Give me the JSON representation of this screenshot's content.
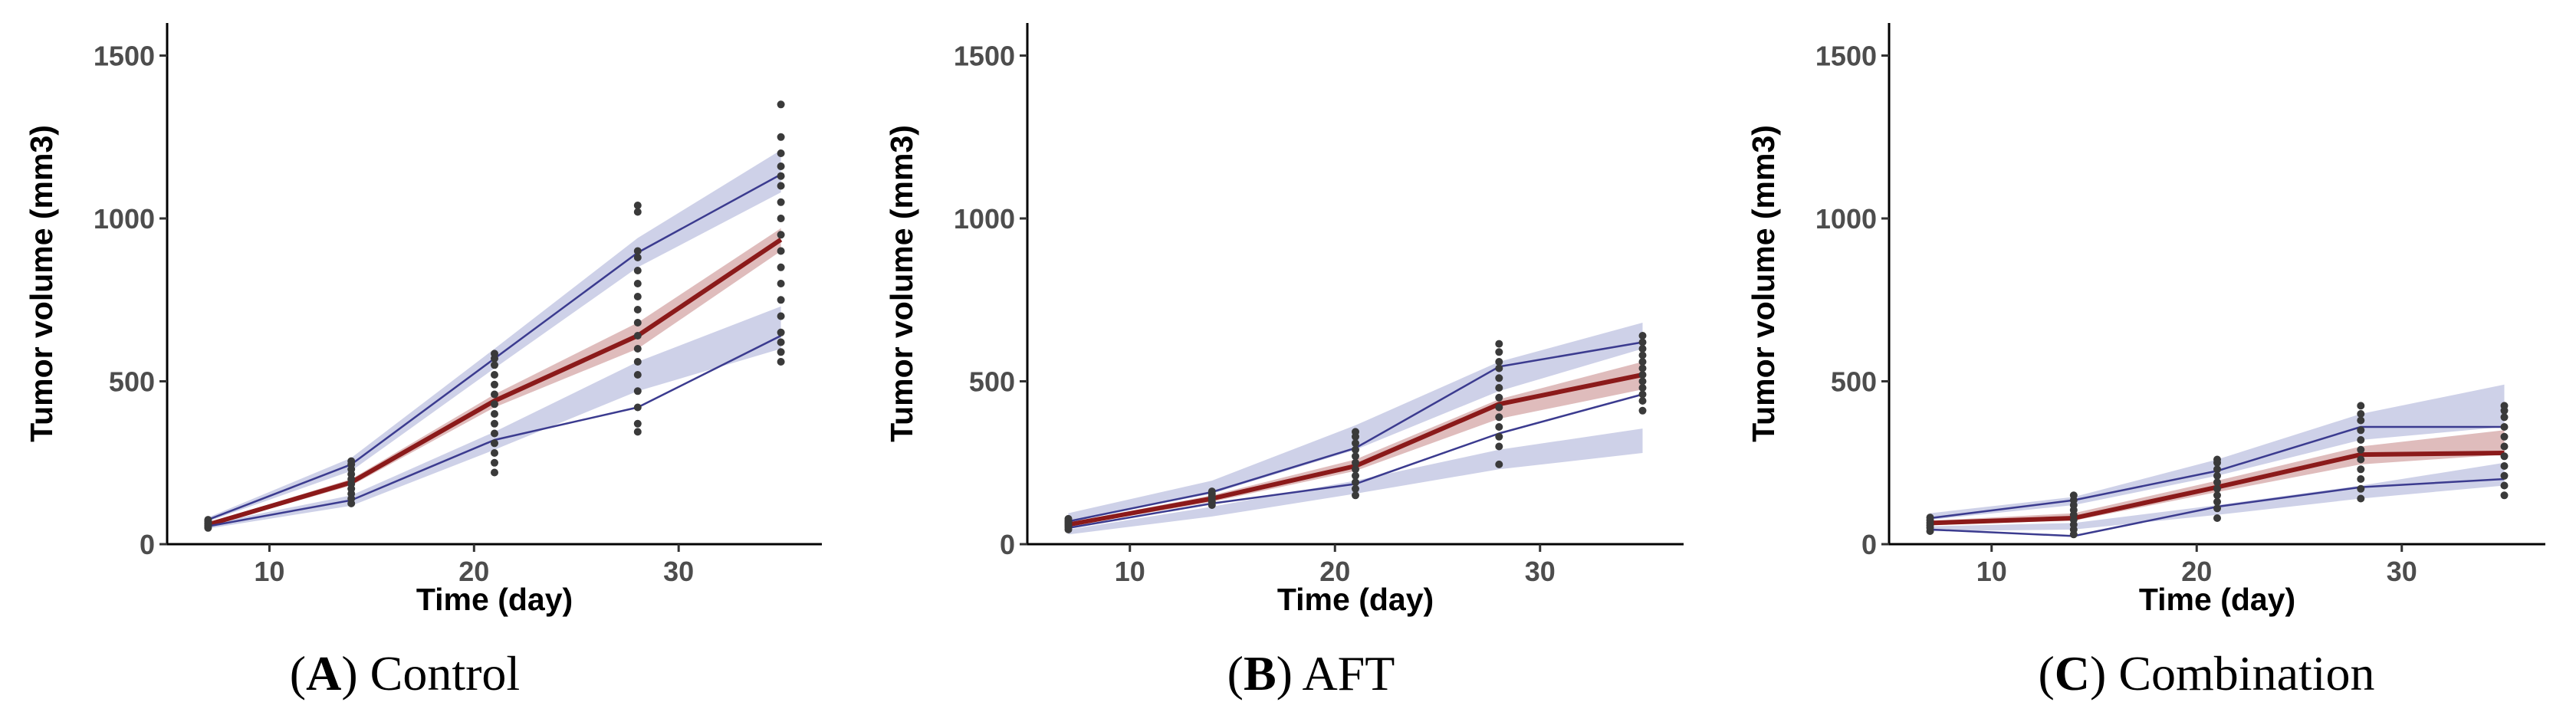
{
  "figure": {
    "colors": {
      "median_line": "#8b1a1a",
      "median_band": "#d4a5a5",
      "percentile_line": "#3b3b8f",
      "percentile_band": "#b3b9dc",
      "observed_points": "#3a3a3a",
      "axis": "#000000",
      "tick_text": "#4d4d4d"
    }
  },
  "chart_data": [
    {
      "type": "line",
      "panel": "A",
      "caption_letter": "A",
      "caption_paren_open": "(",
      "caption_paren_close": ")",
      "caption_text": "Control",
      "xlabel": "Time (day)",
      "ylabel": "Tumor volume (mm3)",
      "xlim": [
        5,
        37
      ],
      "ylim": [
        0,
        1600
      ],
      "xticks": [
        10,
        20,
        30
      ],
      "yticks": [
        0,
        500,
        1000,
        1500
      ],
      "x": [
        7,
        14,
        21,
        28,
        35
      ],
      "series": [
        {
          "name": "median",
          "values": [
            60,
            190,
            440,
            640,
            935
          ]
        },
        {
          "name": "upper-percentile",
          "values": [
            75,
            245,
            570,
            895,
            1135
          ]
        },
        {
          "name": "lower-percentile",
          "values": [
            55,
            135,
            320,
            420,
            640
          ]
        }
      ],
      "bands": [
        {
          "name": "median-ci",
          "lower": [
            55,
            180,
            420,
            600,
            900
          ],
          "upper": [
            65,
            200,
            460,
            680,
            970
          ]
        },
        {
          "name": "upper-ci",
          "lower": [
            70,
            225,
            540,
            850,
            1080
          ],
          "upper": [
            82,
            265,
            600,
            940,
            1210
          ]
        },
        {
          "name": "lower-ci",
          "lower": [
            48,
            118,
            290,
            470,
            600
          ],
          "upper": [
            62,
            150,
            345,
            560,
            730
          ]
        }
      ],
      "observed": [
        {
          "x": 7,
          "y": [
            50,
            55,
            58,
            62,
            65,
            70,
            75
          ]
        },
        {
          "x": 14,
          "y": [
            125,
            140,
            155,
            170,
            185,
            200,
            215,
            230,
            245,
            255
          ]
        },
        {
          "x": 21,
          "y": [
            220,
            250,
            280,
            310,
            340,
            370,
            400,
            430,
            460,
            490,
            520,
            550,
            570,
            585
          ]
        },
        {
          "x": 28,
          "y": [
            345,
            370,
            420,
            470,
            520,
            560,
            600,
            640,
            680,
            720,
            760,
            800,
            840,
            880,
            900,
            1020,
            1040
          ]
        },
        {
          "x": 35,
          "y": [
            560,
            590,
            620,
            650,
            700,
            750,
            800,
            850,
            900,
            950,
            1000,
            1050,
            1100,
            1130,
            1160,
            1200,
            1250,
            1350
          ]
        }
      ]
    },
    {
      "type": "line",
      "panel": "B",
      "caption_letter": "B",
      "caption_paren_open": "(",
      "caption_paren_close": ")",
      "caption_text": "AFT",
      "xlabel": "Time (day)",
      "ylabel": "Tumor volume (mm3)",
      "xlim": [
        5,
        37
      ],
      "ylim": [
        0,
        1600
      ],
      "xticks": [
        10,
        20,
        30
      ],
      "yticks": [
        0,
        500,
        1000,
        1500
      ],
      "x": [
        7,
        14,
        21,
        28,
        35
      ],
      "series": [
        {
          "name": "median",
          "values": [
            60,
            140,
            240,
            430,
            520
          ]
        },
        {
          "name": "upper-percentile",
          "values": [
            70,
            160,
            295,
            545,
            620
          ]
        },
        {
          "name": "lower-percentile",
          "values": [
            50,
            125,
            185,
            340,
            460
          ]
        }
      ],
      "bands": [
        {
          "name": "median-ci",
          "lower": [
            55,
            130,
            225,
            385,
            475
          ],
          "upper": [
            66,
            150,
            260,
            445,
            560
          ]
        },
        {
          "name": "upper-ci",
          "lower": [
            72,
            155,
            290,
            470,
            600
          ],
          "upper": [
            95,
            195,
            365,
            560,
            680
          ]
        },
        {
          "name": "lower-ci",
          "lower": [
            30,
            85,
            155,
            230,
            280
          ],
          "upper": [
            45,
            115,
            195,
            290,
            355
          ]
        }
      ],
      "observed": [
        {
          "x": 7,
          "y": [
            45,
            52,
            58,
            63,
            68,
            72,
            78
          ]
        },
        {
          "x": 14,
          "y": [
            120,
            130,
            140,
            148,
            155,
            162
          ]
        },
        {
          "x": 21,
          "y": [
            150,
            170,
            190,
            210,
            230,
            250,
            270,
            290,
            310,
            330,
            345
          ]
        },
        {
          "x": 28,
          "y": [
            245,
            300,
            330,
            360,
            390,
            420,
            450,
            480,
            510,
            540,
            560,
            590,
            615
          ]
        },
        {
          "x": 35,
          "y": [
            410,
            440,
            460,
            480,
            500,
            520,
            540,
            560,
            580,
            600,
            620,
            640
          ]
        }
      ]
    },
    {
      "type": "line",
      "panel": "C",
      "caption_letter": "C",
      "caption_paren_open": "(",
      "caption_paren_close": ")",
      "caption_text": "Combination",
      "xlabel": "Time (day)",
      "ylabel": "Tumor volume (mm3)",
      "xlim": [
        5,
        37
      ],
      "ylim": [
        0,
        1600
      ],
      "xticks": [
        10,
        20,
        30
      ],
      "yticks": [
        0,
        500,
        1000,
        1500
      ],
      "x": [
        7,
        14,
        21,
        28,
        35
      ],
      "series": [
        {
          "name": "median",
          "values": [
            65,
            80,
            175,
            275,
            280
          ]
        },
        {
          "name": "upper-percentile",
          "values": [
            80,
            135,
            225,
            360,
            360
          ]
        },
        {
          "name": "lower-percentile",
          "values": [
            45,
            25,
            115,
            175,
            200
          ]
        }
      ],
      "bands": [
        {
          "name": "median-ci",
          "lower": [
            60,
            72,
            160,
            245,
            275
          ],
          "upper": [
            72,
            95,
            195,
            300,
            350
          ]
        },
        {
          "name": "upper-ci",
          "lower": [
            75,
            120,
            210,
            320,
            360
          ],
          "upper": [
            95,
            145,
            260,
            400,
            490
          ]
        },
        {
          "name": "lower-ci",
          "lower": [
            40,
            45,
            90,
            140,
            180
          ],
          "upper": [
            55,
            65,
            120,
            180,
            250
          ]
        }
      ],
      "observed": [
        {
          "x": 7,
          "y": [
            40,
            50,
            58,
            66,
            74,
            82
          ]
        },
        {
          "x": 14,
          "y": [
            30,
            45,
            60,
            75,
            90,
            105,
            120,
            135,
            150
          ]
        },
        {
          "x": 21,
          "y": [
            80,
            110,
            130,
            150,
            170,
            190,
            210,
            230,
            250,
            260
          ]
        },
        {
          "x": 28,
          "y": [
            140,
            170,
            200,
            230,
            260,
            290,
            320,
            350,
            380,
            400,
            425
          ]
        },
        {
          "x": 35,
          "y": [
            150,
            180,
            210,
            240,
            270,
            300,
            330,
            360,
            390,
            410,
            425
          ]
        }
      ]
    }
  ]
}
